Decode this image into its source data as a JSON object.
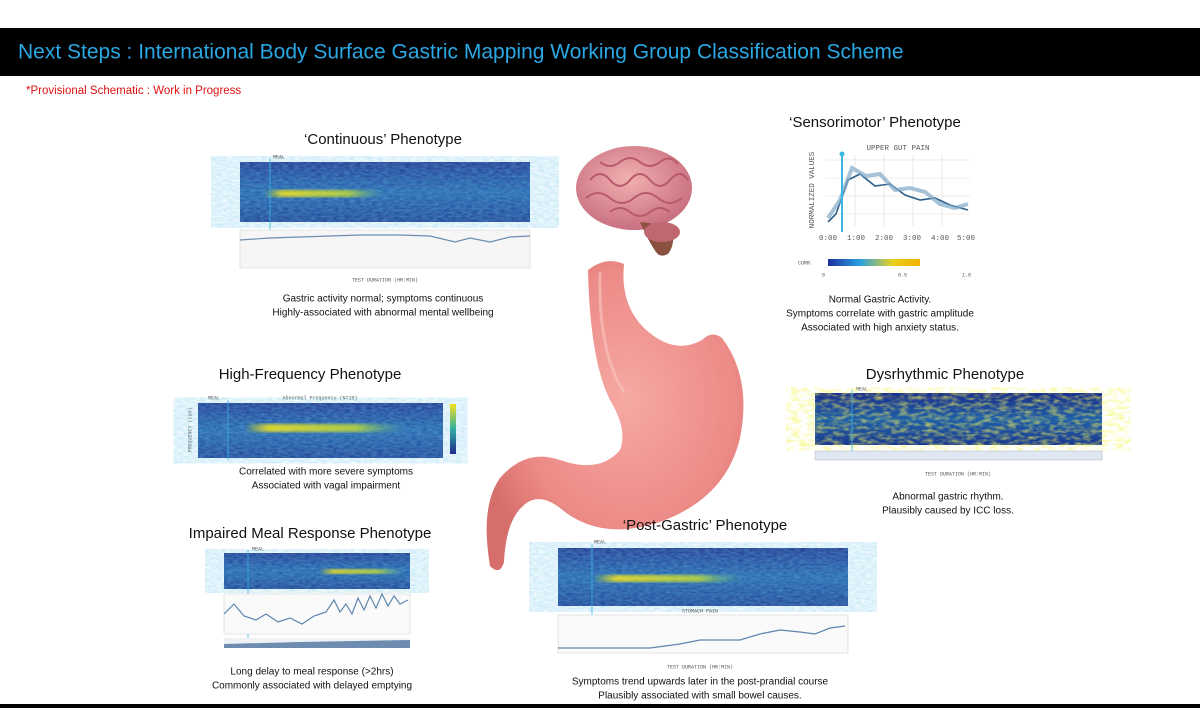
{
  "header": {
    "title": "Next Steps : International Body Surface Gastric Mapping Working Group Classification Scheme",
    "note": "*Provisional Schematic : Work in Progress"
  },
  "panels": [
    {
      "title": "‘Continuous’ Phenotype",
      "captions": [
        "Gastric activity normal; symptoms continuous",
        "Highly-associated with abnormal mental wellbeing"
      ],
      "figure_labels": [
        "MEAL",
        "TEST DURATION (HR:MIN)"
      ]
    },
    {
      "title": "‘Sensorimotor’ Phenotype",
      "captions": [
        "Normal Gastric Activity.",
        "Symptoms correlate with gastric amplitude",
        "Associated with high anxiety status."
      ],
      "figure_labels": [
        "UPPER GUT PAIN",
        "NORMALIZED VALUES",
        "0:00",
        "1:00",
        "2:00",
        "3:00",
        "4:00",
        "5:00",
        "CORR.",
        "0",
        "0.5",
        "1.0"
      ]
    },
    {
      "title": "High-Frequency Phenotype",
      "captions": [
        "Correlated with more severe symptoms",
        "Associated with vagal impairment"
      ],
      "figure_labels": [
        "MEAL",
        "Abnormal Frequency (N=10)",
        "FREQUENCY (cpm)"
      ]
    },
    {
      "title": "Dysrhythmic Phenotype",
      "captions": [
        "Abnormal gastric rhythm.",
        "Plausibly caused by ICC loss."
      ],
      "figure_labels": [
        "MEAL",
        "TEST DURATION (HR:MIN)"
      ]
    },
    {
      "title": "Impaired Meal Response Phenotype",
      "captions": [
        "Long delay to meal response (>2hrs)",
        "Commonly associated with delayed emptying"
      ],
      "figure_labels": [
        "MEAL"
      ]
    },
    {
      "title": "‘Post-Gastric’ Phenotype",
      "captions": [
        "Symptoms trend upwards later in the post-prandial course",
        "Plausibly associated with small bowel causes."
      ],
      "figure_labels": [
        "MEAL",
        "STOMACH PAIN",
        "TEST DURATION (HR:MIN)"
      ]
    }
  ]
}
